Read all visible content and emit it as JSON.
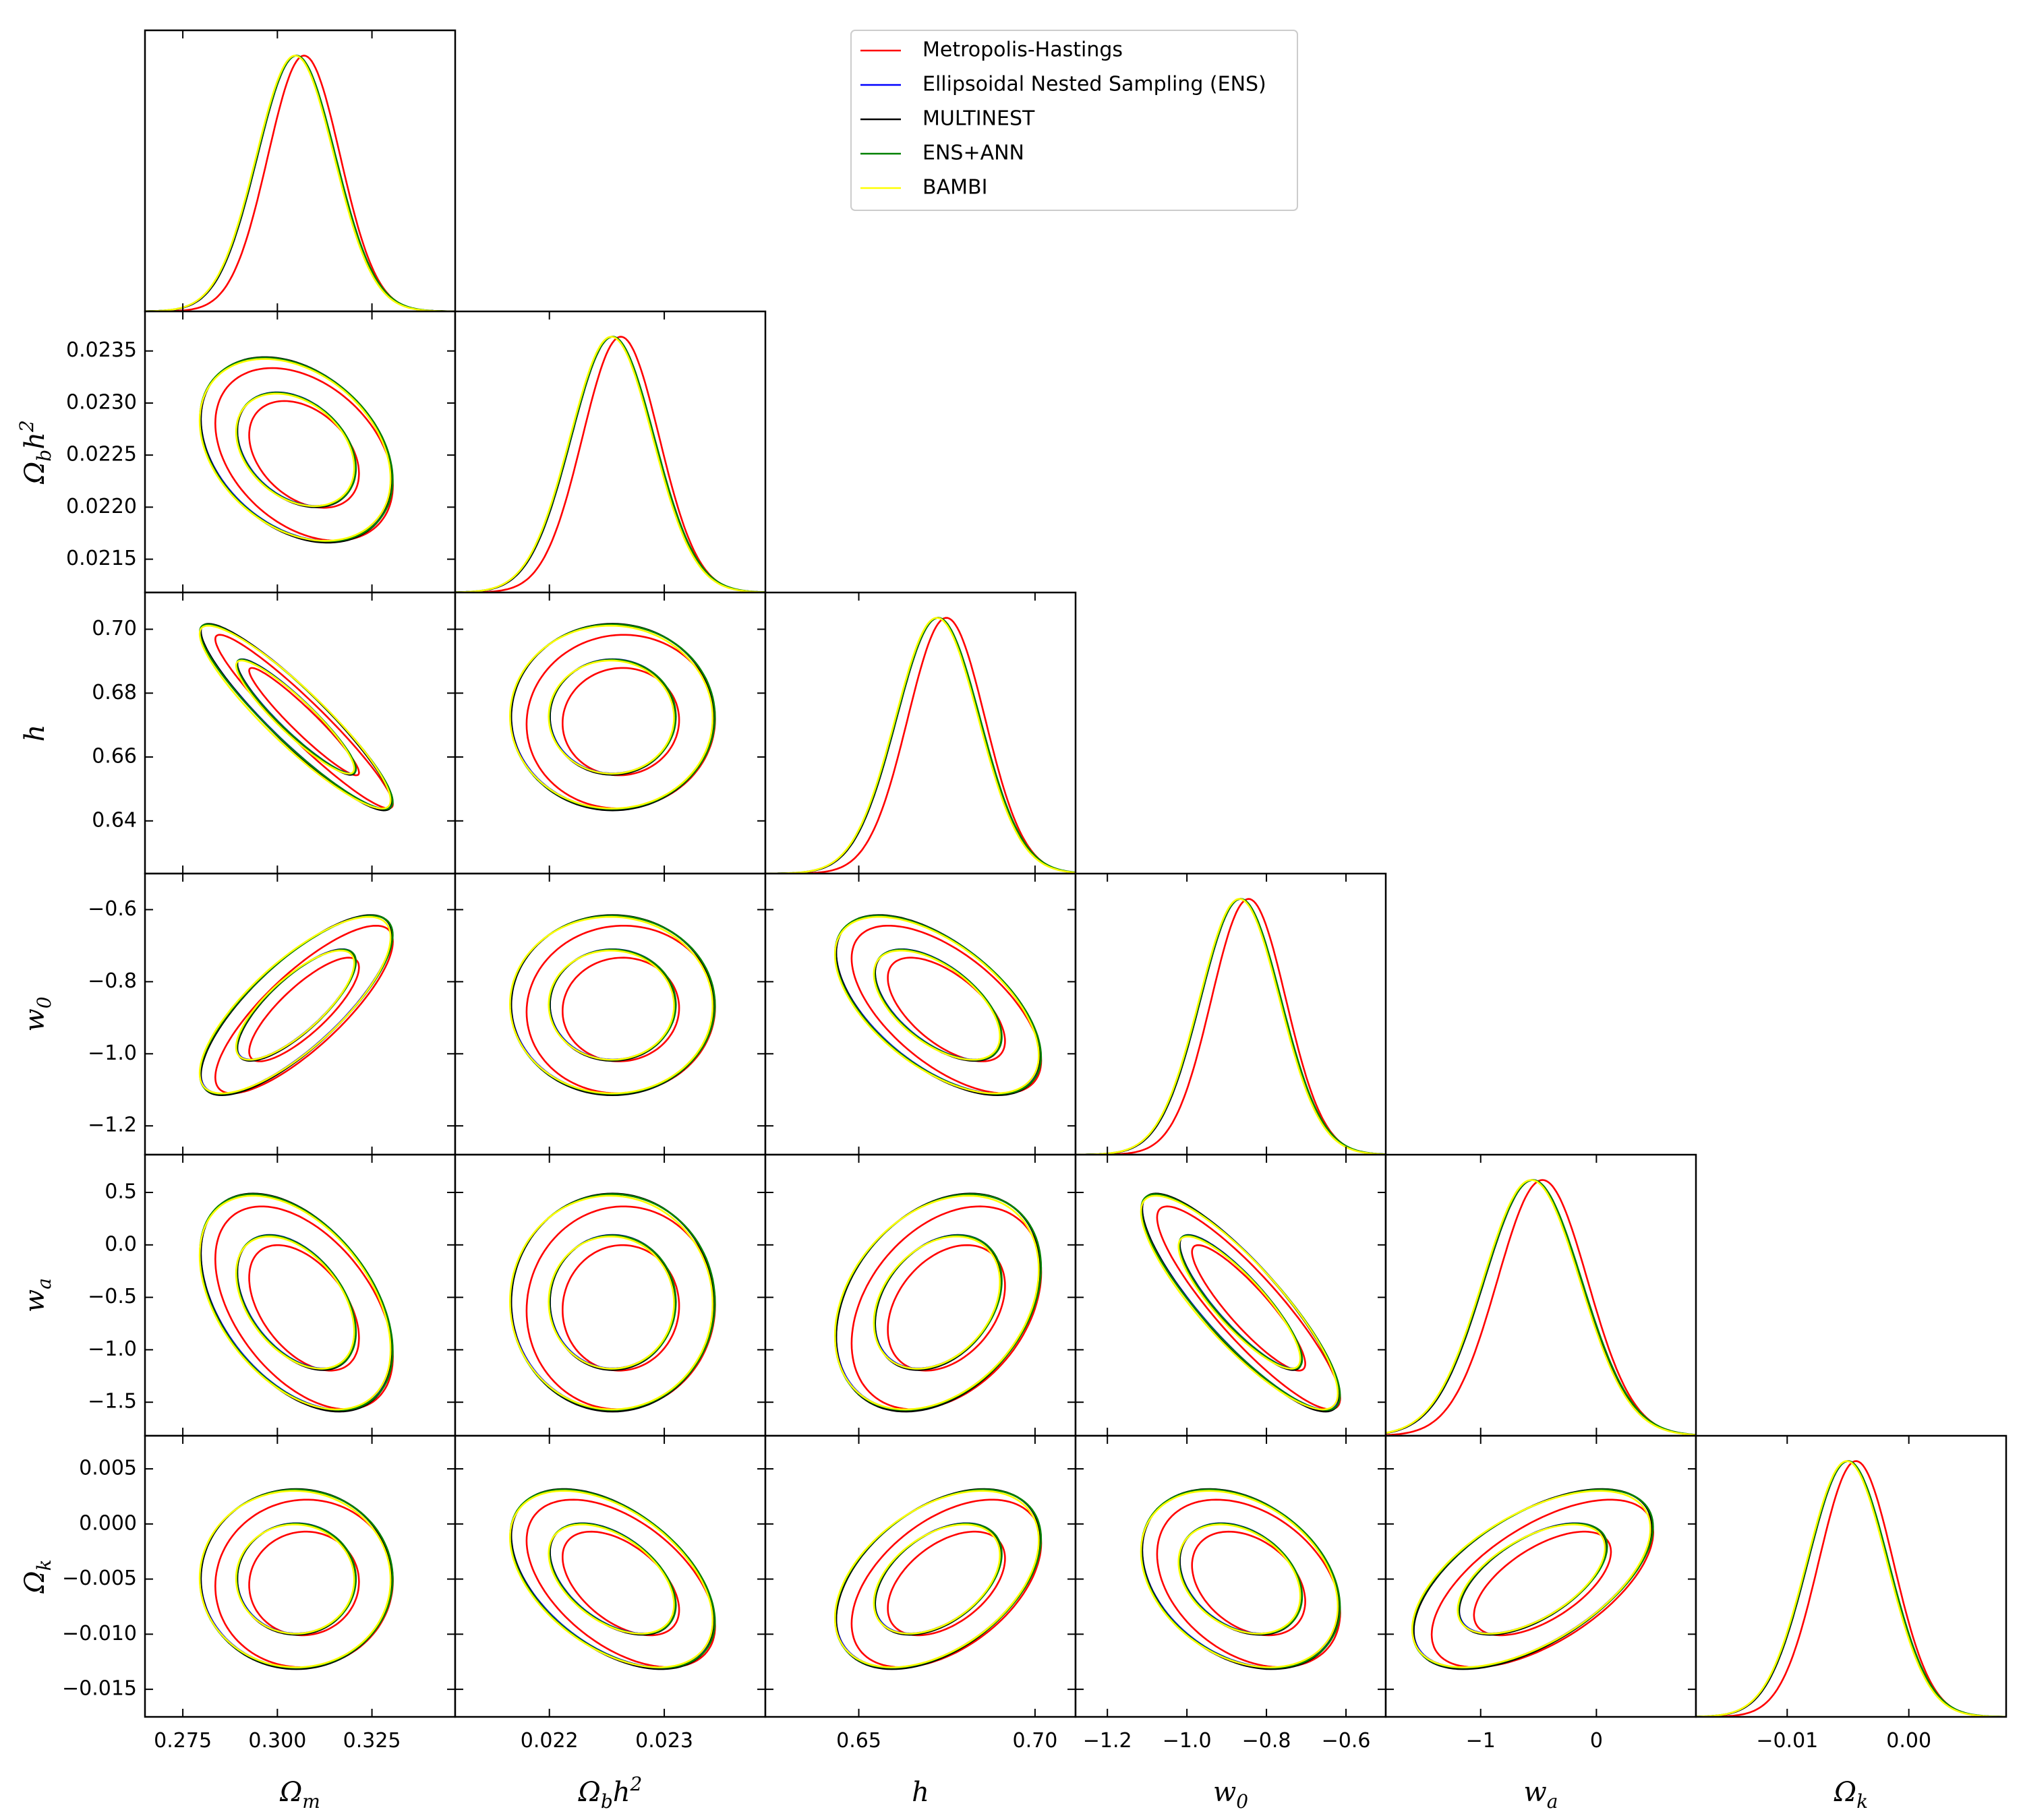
{
  "chart_data": {
    "type": "corner",
    "parameters": [
      {
        "id": "om",
        "label": "Ω",
        "sub": "m",
        "sup": "",
        "range": [
          0.265,
          0.347
        ],
        "ticks": [
          0.275,
          0.3,
          0.325
        ],
        "tick_labels": [
          "0.275",
          "0.300",
          "0.325"
        ],
        "mean": 0.305,
        "sigma": 0.0103
      },
      {
        "id": "obh2",
        "label": "Ωh",
        "sub": "b",
        "sup": "2",
        "range": [
          0.02118,
          0.02388
        ],
        "ticks": [
          0.0215,
          0.022,
          0.0225,
          0.023,
          0.0235
        ],
        "tick_labels": [
          "0.0215",
          "0.0220",
          "0.0225",
          "0.0230",
          "0.0235"
        ],
        "x_ticks": [
          0.022,
          0.023
        ],
        "x_tick_labels": [
          "0.022",
          "0.023"
        ],
        "mean": 0.02255,
        "sigma": 0.00036
      },
      {
        "id": "h",
        "label": "h",
        "sub": "",
        "sup": "",
        "range": [
          0.6235,
          0.7115
        ],
        "ticks": [
          0.64,
          0.66,
          0.68,
          0.7
        ],
        "tick_labels": [
          "0.64",
          "0.66",
          "0.68",
          "0.70"
        ],
        "x_ticks": [
          0.65,
          0.7
        ],
        "x_tick_labels": [
          "0.65",
          "0.70"
        ],
        "mean": 0.6725,
        "sigma": 0.0118
      },
      {
        "id": "w0",
        "label": "w",
        "sub": "0",
        "sup": "",
        "range": [
          -1.28,
          -0.5
        ],
        "ticks": [
          -1.2,
          -1.0,
          -0.8,
          -0.6
        ],
        "tick_labels": [
          "−1.2",
          "−1.0",
          "−0.8",
          "−0.6"
        ],
        "y_ticks": [
          -1.2,
          -1.0,
          -0.8,
          -0.6
        ],
        "mean": -0.865,
        "sigma": 0.101
      },
      {
        "id": "wa",
        "label": "w",
        "sub": "a",
        "sup": "",
        "range": [
          -1.82,
          0.86
        ],
        "ticks": [
          -1.5,
          -1.0,
          -0.5,
          0.0,
          0.5
        ],
        "tick_labels": [
          "−1.5",
          "−1.0",
          "−0.5",
          "0.0",
          "0.5"
        ],
        "x_ticks": [
          -1,
          0
        ],
        "x_tick_labels": [
          "−1",
          "0"
        ],
        "mean": -0.55,
        "sigma": 0.42
      },
      {
        "id": "ok",
        "label": "Ω",
        "sub": "k",
        "sup": "",
        "range": [
          -0.0175,
          0.008
        ],
        "ticks": [
          -0.015,
          -0.01,
          -0.005,
          0.0,
          0.005
        ],
        "tick_labels": [
          "−0.015",
          "−0.010",
          "−0.005",
          "0.000",
          "0.005"
        ],
        "x_ticks": [
          -0.01,
          0.0
        ],
        "x_tick_labels": [
          "−0.01",
          "0.00"
        ],
        "mean": -0.005,
        "sigma": 0.0033
      }
    ],
    "correlations": {
      "om-obh2": -0.33,
      "om-h": -0.92,
      "om-w0": 0.78,
      "om-wa": -0.45,
      "om-ok": 0.0,
      "obh2-h": 0.0,
      "obh2-w0": 0.0,
      "obh2-wa": 0.0,
      "obh2-ok": -0.48,
      "h-w0": -0.58,
      "h-wa": 0.32,
      "h-ok": 0.45,
      "w0-wa": -0.86,
      "w0-ok": -0.32,
      "wa-ok": 0.58
    },
    "series": [
      {
        "name": "Metropolis-Hastings",
        "color": "#ff0000"
      },
      {
        "name": "Ellipsoidal Nested Sampling (ENS)",
        "color": "#0000ff"
      },
      {
        "name": "MULTINEST",
        "color": "#000000"
      },
      {
        "name": "ENS+ANN",
        "color": "#008000"
      },
      {
        "name": "BAMBI",
        "color": "#ffff00"
      }
    ],
    "legend_position": "top-right",
    "contour_levels": [
      "68%",
      "95%"
    ]
  }
}
